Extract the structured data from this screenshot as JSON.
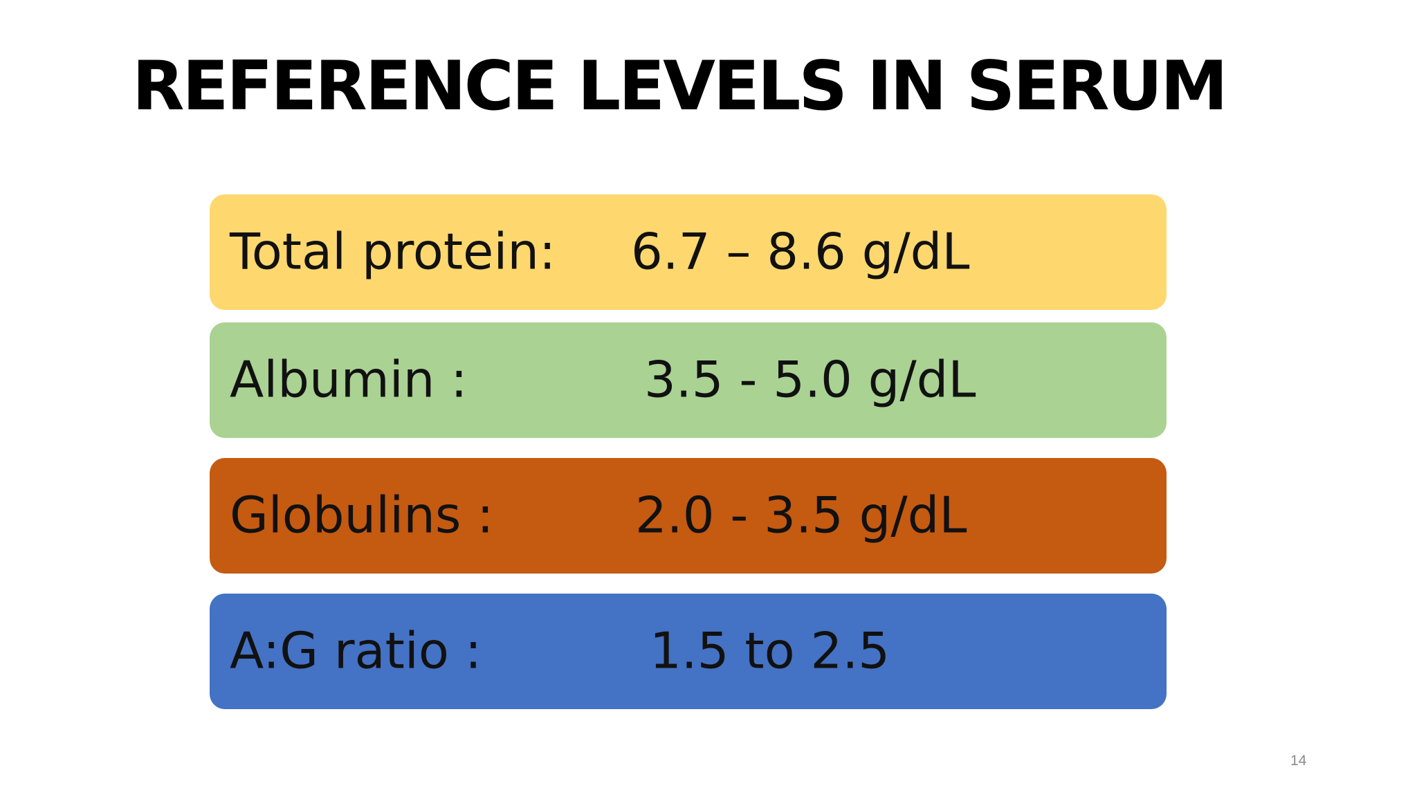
{
  "header": {
    "title": "REFERENCE LEVELS IN SERUM"
  },
  "rows": [
    {
      "label": "Total protein:",
      "value": "6.7 – 8.6 g/dL"
    },
    {
      "label": "Albumin :",
      "value": "3.5 - 5.0 g/dL"
    },
    {
      "label": "Globulins :",
      "value": "2.0 - 3.5 g/dL"
    },
    {
      "label": "A:G ratio :",
      "value": "1.5 to 2.5"
    }
  ],
  "footer": {
    "page_number": "14"
  }
}
